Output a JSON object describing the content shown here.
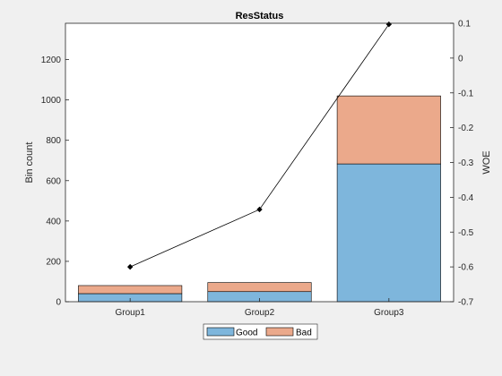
{
  "chart_data": {
    "type": "bar",
    "title": "ResStatus",
    "categories": [
      "Group1",
      "Group2",
      "Group3"
    ],
    "stacked": true,
    "series": [
      {
        "name": "Good",
        "color": "#7eb6dc",
        "values": [
          40,
          50,
          683
        ]
      },
      {
        "name": "Bad",
        "color": "#eba98b",
        "values": [
          40,
          45,
          337
        ]
      }
    ],
    "ylabel": "Bin count",
    "ylim": [
      0,
      1380
    ],
    "yticks": [
      0,
      200,
      400,
      600,
      800,
      1000,
      1200
    ],
    "y2label": "WOE",
    "y2lim": [
      -0.7,
      0.1
    ],
    "y2ticks": [
      -0.7,
      -0.6,
      -0.5,
      -0.4,
      -0.3,
      -0.2,
      -0.1,
      0,
      0.1
    ],
    "woe": {
      "values": [
        -0.6,
        -0.435,
        0.097
      ],
      "color": "#000000"
    },
    "legend": "bottom-center",
    "grid": false
  }
}
